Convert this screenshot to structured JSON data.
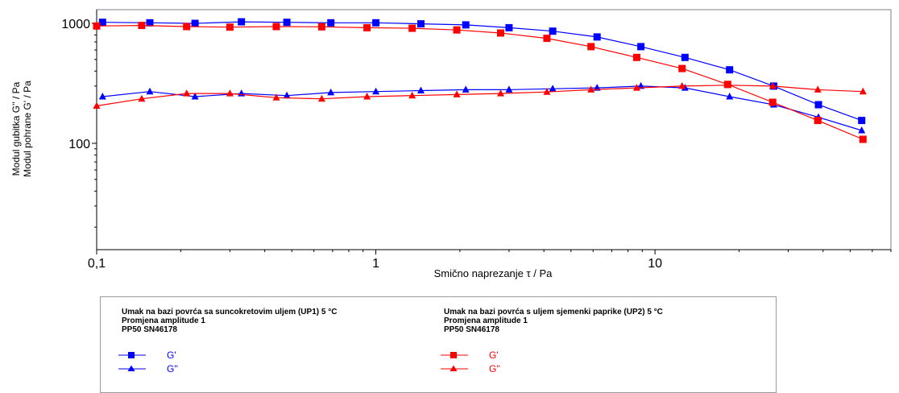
{
  "chart_data": {
    "type": "line",
    "x_scale": "log",
    "y_scale": "log",
    "xlim": [
      0.1,
      70
    ],
    "ylim": [
      13,
      1300
    ],
    "xlabel": "Smično naprezanje τ / Pa",
    "ylabel_lines": [
      "Modul gubitka G'' / Pa",
      "Modul pohrane G' / Pa"
    ],
    "x_ticks": [
      {
        "value": 0.1,
        "label": "0,1"
      },
      {
        "value": 1,
        "label": "1"
      },
      {
        "value": 10,
        "label": "10"
      }
    ],
    "y_ticks": [
      {
        "value": 100,
        "label": "100"
      },
      {
        "value": 1000,
        "label": "1000"
      }
    ],
    "grid": false,
    "series": [
      {
        "name": "G'",
        "color": "#0000ff",
        "marker": "square",
        "x": [
          0.105,
          0.155,
          0.225,
          0.33,
          0.48,
          0.69,
          1.0,
          1.45,
          2.1,
          3.0,
          4.3,
          6.2,
          8.9,
          12.8,
          18.5,
          26.6,
          38.5,
          55.0
        ],
        "y": [
          1020,
          1010,
          1000,
          1030,
          1020,
          1010,
          1010,
          990,
          970,
          920,
          860,
          770,
          640,
          520,
          410,
          300,
          210,
          155
        ]
      },
      {
        "name": "G''",
        "color": "#0000ff",
        "marker": "triangle",
        "x": [
          0.105,
          0.155,
          0.225,
          0.33,
          0.48,
          0.69,
          1.0,
          1.45,
          2.1,
          3.0,
          4.3,
          6.2,
          8.9,
          12.8,
          18.5,
          26.6,
          38.5,
          55.0
        ],
        "y": [
          245,
          270,
          245,
          260,
          250,
          265,
          270,
          275,
          280,
          280,
          285,
          290,
          300,
          290,
          245,
          210,
          165,
          128
        ]
      },
      {
        "name": "G'",
        "color": "#ff0000",
        "marker": "square",
        "x": [
          0.1,
          0.145,
          0.21,
          0.3,
          0.44,
          0.64,
          0.93,
          1.35,
          1.95,
          2.8,
          4.1,
          5.9,
          8.6,
          12.5,
          18.2,
          26.4,
          38.3,
          55.6
        ],
        "y": [
          950,
          960,
          940,
          930,
          940,
          935,
          920,
          910,
          880,
          830,
          750,
          640,
          520,
          420,
          310,
          220,
          155,
          108
        ]
      },
      {
        "name": "G''",
        "color": "#ff0000",
        "marker": "triangle",
        "x": [
          0.1,
          0.145,
          0.21,
          0.3,
          0.44,
          0.64,
          0.93,
          1.35,
          1.95,
          2.8,
          4.1,
          5.9,
          8.6,
          12.5,
          18.2,
          26.4,
          38.3,
          55.6
        ],
        "y": [
          205,
          235,
          260,
          260,
          240,
          235,
          245,
          250,
          255,
          260,
          268,
          280,
          290,
          300,
          305,
          300,
          280,
          270
        ]
      }
    ]
  },
  "legend": {
    "groups": [
      {
        "title": "Umak na bazi povrća sa suncokretovim uljem (UP1) 5 °C",
        "line2": "Promjena amplitude 1",
        "line3": "PP50 SN46178",
        "color": "#0000ff",
        "entries": [
          {
            "label": "G'",
            "marker": "square"
          },
          {
            "label": "G''",
            "marker": "triangle"
          }
        ]
      },
      {
        "title": "Umak na bazi povrća s uljem sjemenki paprike (UP2) 5 °C",
        "line2": "Promjena amplitude 1",
        "line3": "PP50 SN46178",
        "color": "#ff0000",
        "entries": [
          {
            "label": "G'",
            "marker": "square"
          },
          {
            "label": "G''",
            "marker": "triangle"
          }
        ]
      }
    ]
  }
}
